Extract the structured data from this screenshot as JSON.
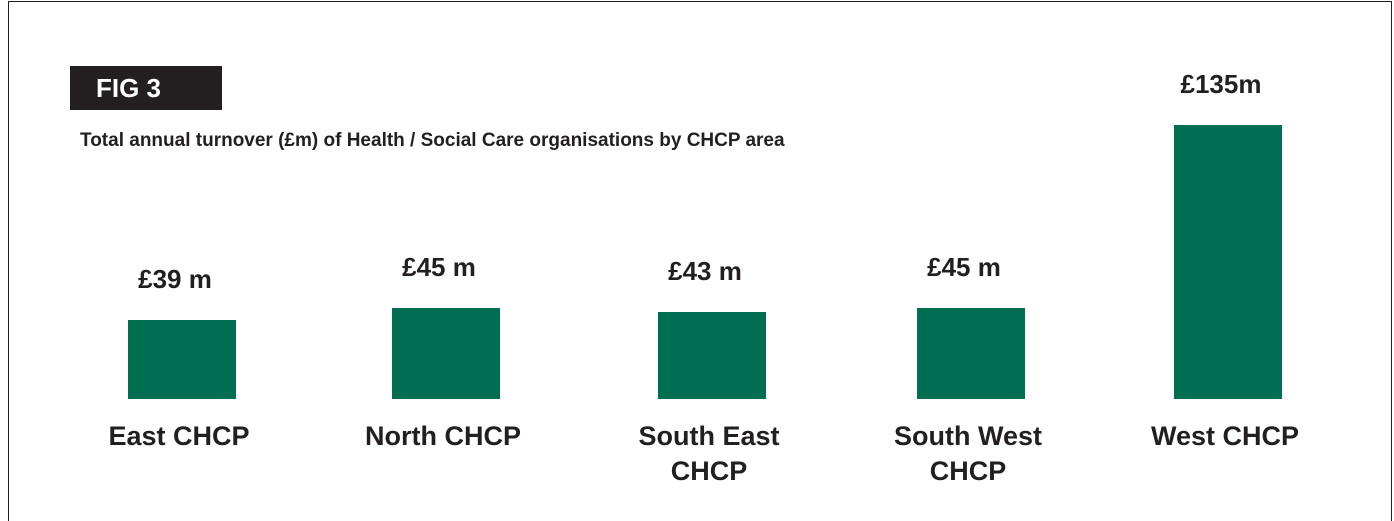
{
  "chart_data": {
    "type": "bar",
    "title": "FIG 3",
    "subtitle": "Total annual turnover (£m) of Health / Social Care organisations by CHCP area",
    "categories": [
      "East CHCP",
      "North CHCP",
      "South East CHCP",
      "South West CHCP",
      "West CHCP"
    ],
    "values": [
      39,
      45,
      43,
      45,
      135
    ],
    "value_labels": [
      "£39 m",
      "£45 m",
      "£43 m",
      "£45 m",
      "£135m"
    ],
    "color": "#006f51"
  }
}
